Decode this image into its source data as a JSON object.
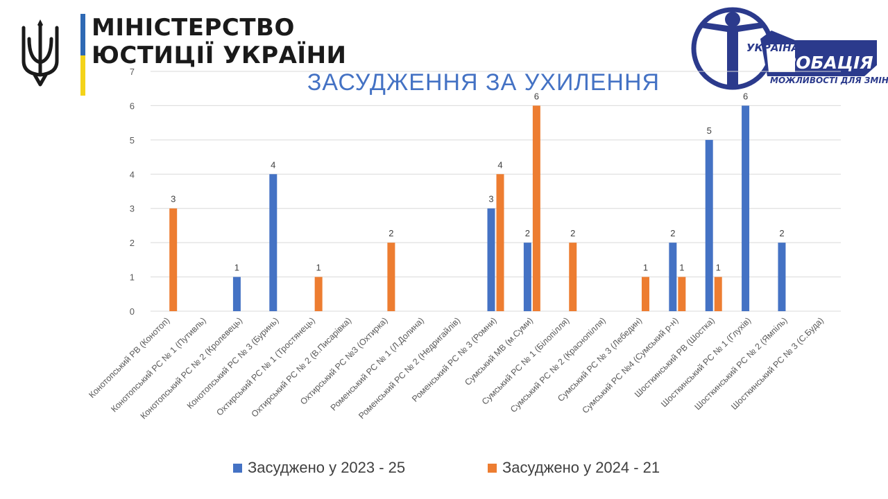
{
  "logos": {
    "ministry_line1": "МІНІСТЕРСТВО",
    "ministry_line2": "ЮСТИЦІЇ УКРАЇНИ",
    "probation_line1": "УКРАЇНА",
    "probation_line2": "ПРОБАЦІЯ",
    "probation_line3": "МОЖЛИВОСТІ ДЛЯ ЗМІН"
  },
  "colors": {
    "series_2023": "#4472c4",
    "series_2024": "#ed7d31",
    "title": "#4472c4",
    "grid": "#d9d9d9",
    "text": "#595959",
    "probation_blue": "#2b3a8c"
  },
  "chart_data": {
    "type": "bar",
    "title": "ЗАСУДЖЕННЯ ЗА УХИЛЕННЯ",
    "xlabel": "",
    "ylabel": "",
    "ylim": [
      0,
      7
    ],
    "yticks": [
      0,
      1,
      2,
      3,
      4,
      5,
      6,
      7
    ],
    "grid": true,
    "legend_position": "bottom",
    "categories": [
      "Конотопський РВ (Конотоп)",
      "Конотопський РС № 1 (Путивль)",
      "Конотопський РС № 2 (Кролевець)",
      "Конотопський РС № 3 (Буринь)",
      "Охтирський РС № 1 (Тростянець)",
      "Охтирський РС № 2 (В.Писарівка)",
      "Охтирський РС №3 (Охтирка)",
      "Роменський РС № 1 (Л.Долина)",
      "Роменський РС № 2 (Недригайлів)",
      "Роменський РС № 3 (Ромни)",
      "Сумський МВ (м.Суми)",
      "Сумський РС № 1 (Білопілля)",
      "Сумський РС № 2 (Краснопілля)",
      "Сумський РС № 3 (Лебедин)",
      "Сумський РС №4 (Сумський р-н)",
      "Шосткинський РВ (Шостка)",
      "Шосткинський РС № 1 (Глухів)",
      "Шосткинський РС № 2 (Ямпіль)",
      "Шосткинський РС № 3 (С.Буда)"
    ],
    "series": [
      {
        "name": "Засуджено у 2023 - 25",
        "values": [
          null,
          null,
          1,
          4,
          null,
          null,
          null,
          null,
          null,
          3,
          2,
          null,
          null,
          null,
          2,
          5,
          6,
          2,
          null
        ]
      },
      {
        "name": "Засуджено у 2024 - 21",
        "values": [
          3,
          null,
          null,
          null,
          1,
          null,
          2,
          null,
          null,
          4,
          6,
          2,
          null,
          1,
          1,
          1,
          null,
          null,
          null
        ]
      }
    ]
  }
}
